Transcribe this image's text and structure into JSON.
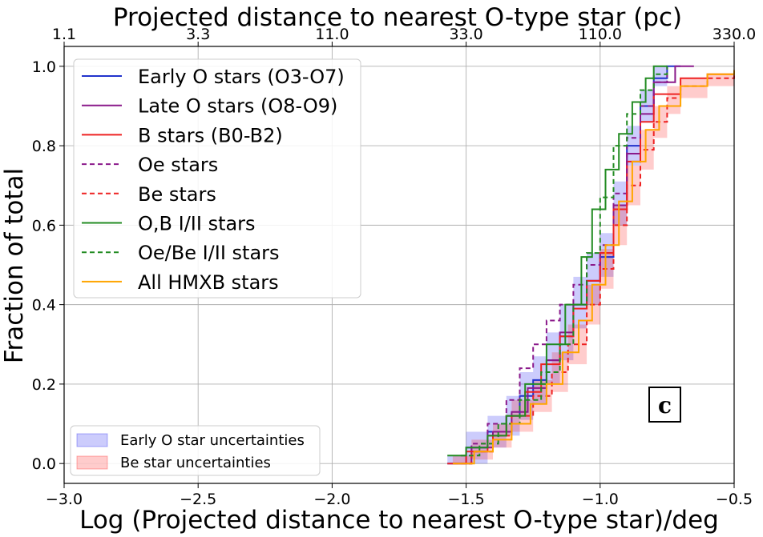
{
  "chart_data": {
    "type": "line",
    "subtype": "cumulative step distribution",
    "title": "",
    "xlabel": "Log (Projected distance to nearest O-type star)/deg",
    "ylabel": "Fraction of total",
    "top_xlabel": "Projected distance to nearest O-type star (pc)",
    "xlim": [
      -3.0,
      -0.5
    ],
    "ylim": [
      -0.05,
      1.05
    ],
    "x_ticks": [
      "−3.0",
      "−2.5",
      "−2.0",
      "−1.5",
      "−1.0",
      "−0.5"
    ],
    "x_tick_values": [
      -3.0,
      -2.5,
      -2.0,
      -1.5,
      -1.0,
      -0.5
    ],
    "y_ticks": [
      "0.0",
      "0.2",
      "0.4",
      "0.6",
      "0.8",
      "1.0"
    ],
    "y_tick_values": [
      0.0,
      0.2,
      0.4,
      0.6,
      0.8,
      1.0
    ],
    "top_ticks": [
      "1.1",
      "3.3",
      "11.0",
      "33.0",
      "110.0",
      "330.0"
    ],
    "top_tick_positions": [
      -3.0,
      -2.5,
      -2.0,
      -1.5,
      -1.0,
      -0.5
    ],
    "grid": true,
    "legend_position": "top-left",
    "panel_label": "c",
    "series": [
      {
        "name": "Early O stars (O3-O7)",
        "color": "#2233cc",
        "dash": false,
        "x": [
          -1.57,
          -1.5,
          -1.42,
          -1.35,
          -1.3,
          -1.25,
          -1.2,
          -1.15,
          -1.1,
          -1.05,
          -1.0,
          -0.95,
          -0.9,
          -0.85,
          -0.8,
          -0.75,
          -0.7
        ],
        "y": [
          0.0,
          0.04,
          0.08,
          0.12,
          0.17,
          0.21,
          0.26,
          0.32,
          0.4,
          0.46,
          0.52,
          0.65,
          0.8,
          0.9,
          0.97,
          1.0,
          1.0
        ]
      },
      {
        "name": "Late O stars (O8-O9)",
        "color": "#8b1a8b",
        "dash": false,
        "x": [
          -1.55,
          -1.48,
          -1.4,
          -1.33,
          -1.27,
          -1.2,
          -1.15,
          -1.1,
          -1.05,
          -1.0,
          -0.95,
          -0.9,
          -0.85,
          -0.8,
          -0.72,
          -0.65
        ],
        "y": [
          0.0,
          0.04,
          0.08,
          0.13,
          0.19,
          0.26,
          0.33,
          0.4,
          0.46,
          0.53,
          0.65,
          0.78,
          0.88,
          0.96,
          1.0,
          1.0
        ]
      },
      {
        "name": "B stars (B0-B2)",
        "color": "#ee2222",
        "dash": false,
        "x": [
          -1.57,
          -1.5,
          -1.42,
          -1.35,
          -1.28,
          -1.22,
          -1.15,
          -1.1,
          -1.05,
          -1.0,
          -0.95,
          -0.9,
          -0.85,
          -0.8,
          -0.7,
          -0.6,
          -0.5
        ],
        "y": [
          0.0,
          0.03,
          0.07,
          0.12,
          0.18,
          0.25,
          0.32,
          0.39,
          0.46,
          0.53,
          0.64,
          0.76,
          0.86,
          0.93,
          0.97,
          0.98,
          0.99
        ]
      },
      {
        "name": "Oe stars",
        "color": "#8b1a8b",
        "dash": true,
        "x": [
          -1.55,
          -1.48,
          -1.42,
          -1.35,
          -1.3,
          -1.25,
          -1.2,
          -1.15,
          -1.1,
          -1.05,
          -1.0,
          -0.95,
          -0.9,
          -0.85,
          -0.8,
          -0.75
        ],
        "y": [
          0.0,
          0.05,
          0.1,
          0.16,
          0.24,
          0.3,
          0.36,
          0.4,
          0.45,
          0.5,
          0.55,
          0.68,
          0.82,
          0.9,
          0.96,
          1.0
        ]
      },
      {
        "name": "Be stars",
        "color": "#ee2222",
        "dash": true,
        "x": [
          -1.55,
          -1.48,
          -1.4,
          -1.33,
          -1.25,
          -1.18,
          -1.12,
          -1.05,
          -1.0,
          -0.95,
          -0.9,
          -0.85,
          -0.8,
          -0.75,
          -0.7,
          -0.6,
          -0.5
        ],
        "y": [
          0.0,
          0.03,
          0.07,
          0.12,
          0.17,
          0.23,
          0.3,
          0.4,
          0.49,
          0.6,
          0.7,
          0.79,
          0.86,
          0.92,
          0.95,
          0.97,
          0.98
        ]
      },
      {
        "name": "O,B I/II stars",
        "color": "#228b22",
        "dash": false,
        "x": [
          -1.57,
          -1.5,
          -1.42,
          -1.35,
          -1.28,
          -1.2,
          -1.13,
          -1.07,
          -1.03,
          -0.98,
          -0.93,
          -0.88,
          -0.83,
          -0.8,
          -0.75
        ],
        "y": [
          0.02,
          0.04,
          0.07,
          0.12,
          0.2,
          0.3,
          0.4,
          0.52,
          0.64,
          0.74,
          0.83,
          0.91,
          0.97,
          1.0,
          1.0
        ]
      },
      {
        "name": "Oe/Be I/II stars",
        "color": "#228b22",
        "dash": true,
        "x": [
          -1.52,
          -1.45,
          -1.38,
          -1.3,
          -1.22,
          -1.15,
          -1.1,
          -1.05,
          -1.0,
          -0.95,
          -0.9,
          -0.85,
          -0.8,
          -0.75
        ],
        "y": [
          0.02,
          0.05,
          0.1,
          0.16,
          0.23,
          0.3,
          0.4,
          0.53,
          0.67,
          0.8,
          0.88,
          0.94,
          0.98,
          1.0
        ]
      },
      {
        "name": "All HMXB stars",
        "color": "#ffa500",
        "dash": false,
        "x": [
          -1.55,
          -1.47,
          -1.4,
          -1.33,
          -1.26,
          -1.2,
          -1.14,
          -1.08,
          -1.03,
          -0.98,
          -0.93,
          -0.88,
          -0.83,
          -0.78,
          -0.7,
          -0.6,
          -0.5
        ],
        "y": [
          0.0,
          0.03,
          0.06,
          0.1,
          0.15,
          0.2,
          0.28,
          0.36,
          0.45,
          0.55,
          0.66,
          0.76,
          0.84,
          0.9,
          0.95,
          0.98,
          0.99
        ]
      }
    ],
    "bands": [
      {
        "name": "Early O star uncertainties",
        "color": "#0000ee",
        "opacity": 0.2,
        "x": [
          -1.57,
          -1.5,
          -1.42,
          -1.35,
          -1.3,
          -1.25,
          -1.2,
          -1.15,
          -1.1,
          -1.05,
          -1.0,
          -0.95,
          -0.9,
          -0.85,
          -0.8,
          -0.75,
          -0.7
        ],
        "low": [
          0.0,
          0.0,
          0.04,
          0.07,
          0.11,
          0.15,
          0.2,
          0.26,
          0.34,
          0.4,
          0.47,
          0.6,
          0.75,
          0.86,
          0.95,
          1.0,
          1.0
        ],
        "high": [
          0.02,
          0.08,
          0.12,
          0.17,
          0.23,
          0.27,
          0.33,
          0.4,
          0.47,
          0.53,
          0.58,
          0.71,
          0.85,
          0.94,
          1.0,
          1.0,
          1.0
        ]
      },
      {
        "name": "Be star uncertainties",
        "color": "#ff0000",
        "opacity": 0.2,
        "x": [
          -1.55,
          -1.48,
          -1.4,
          -1.33,
          -1.25,
          -1.18,
          -1.12,
          -1.05,
          -1.0,
          -0.95,
          -0.9,
          -0.85,
          -0.8,
          -0.75,
          -0.7,
          -0.6,
          -0.5
        ],
        "low": [
          0.0,
          0.01,
          0.04,
          0.08,
          0.13,
          0.18,
          0.25,
          0.35,
          0.44,
          0.55,
          0.65,
          0.74,
          0.82,
          0.88,
          0.92,
          0.95,
          0.97
        ],
        "high": [
          0.02,
          0.06,
          0.1,
          0.16,
          0.21,
          0.28,
          0.35,
          0.45,
          0.54,
          0.65,
          0.75,
          0.84,
          0.9,
          0.95,
          0.97,
          0.98,
          0.99
        ]
      }
    ]
  }
}
